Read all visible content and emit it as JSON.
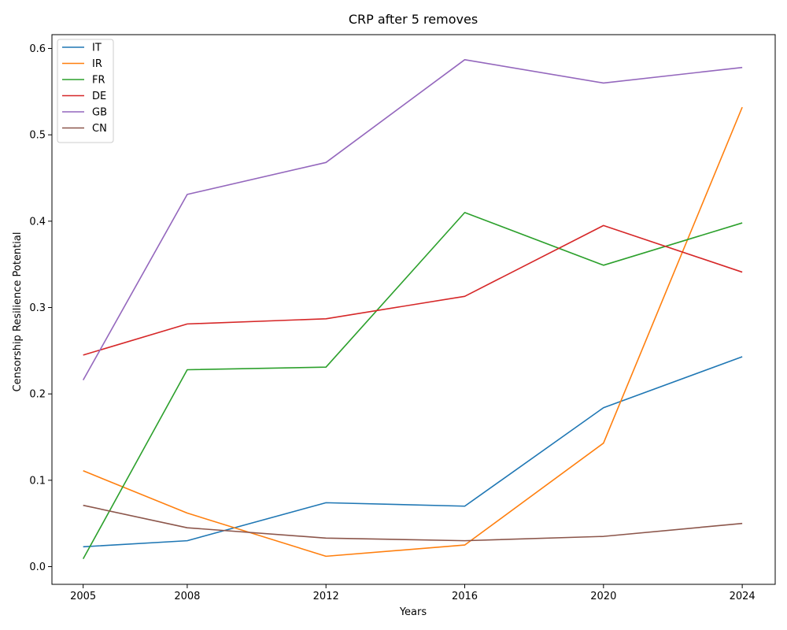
{
  "chart_data": {
    "type": "line",
    "title": "CRP after 5 removes",
    "xlabel": "Years",
    "ylabel": "Censorship Resilience Potential",
    "x": [
      2005,
      2008,
      2012,
      2016,
      2020,
      2024
    ],
    "xticks": [
      "2005",
      "2008",
      "2012",
      "2016",
      "2020",
      "2024"
    ],
    "yticks": [
      "0.0",
      "0.1",
      "0.2",
      "0.3",
      "0.4",
      "0.5",
      "0.6"
    ],
    "xlim": [
      2004.1,
      2024.95
    ],
    "ylim": [
      -0.0205,
      0.616
    ],
    "grid": false,
    "legend": "upper-left",
    "series": [
      {
        "name": "IT",
        "color": "#1f77b4",
        "values": [
          0.023,
          0.03,
          0.074,
          0.07,
          0.184,
          0.243
        ]
      },
      {
        "name": "IR",
        "color": "#ff7f0e",
        "values": [
          0.111,
          0.062,
          0.012,
          0.025,
          0.143,
          0.532
        ]
      },
      {
        "name": "FR",
        "color": "#2ca02c",
        "values": [
          0.009,
          0.228,
          0.231,
          0.41,
          0.349,
          0.398
        ]
      },
      {
        "name": "DE",
        "color": "#d62728",
        "values": [
          0.245,
          0.281,
          0.287,
          0.313,
          0.395,
          0.341
        ]
      },
      {
        "name": "GB",
        "color": "#9467bd",
        "values": [
          0.216,
          0.431,
          0.468,
          0.587,
          0.56,
          0.578
        ]
      },
      {
        "name": "CN",
        "color": "#8c564b",
        "values": [
          0.071,
          0.045,
          0.033,
          0.03,
          0.035,
          0.05
        ]
      }
    ]
  }
}
